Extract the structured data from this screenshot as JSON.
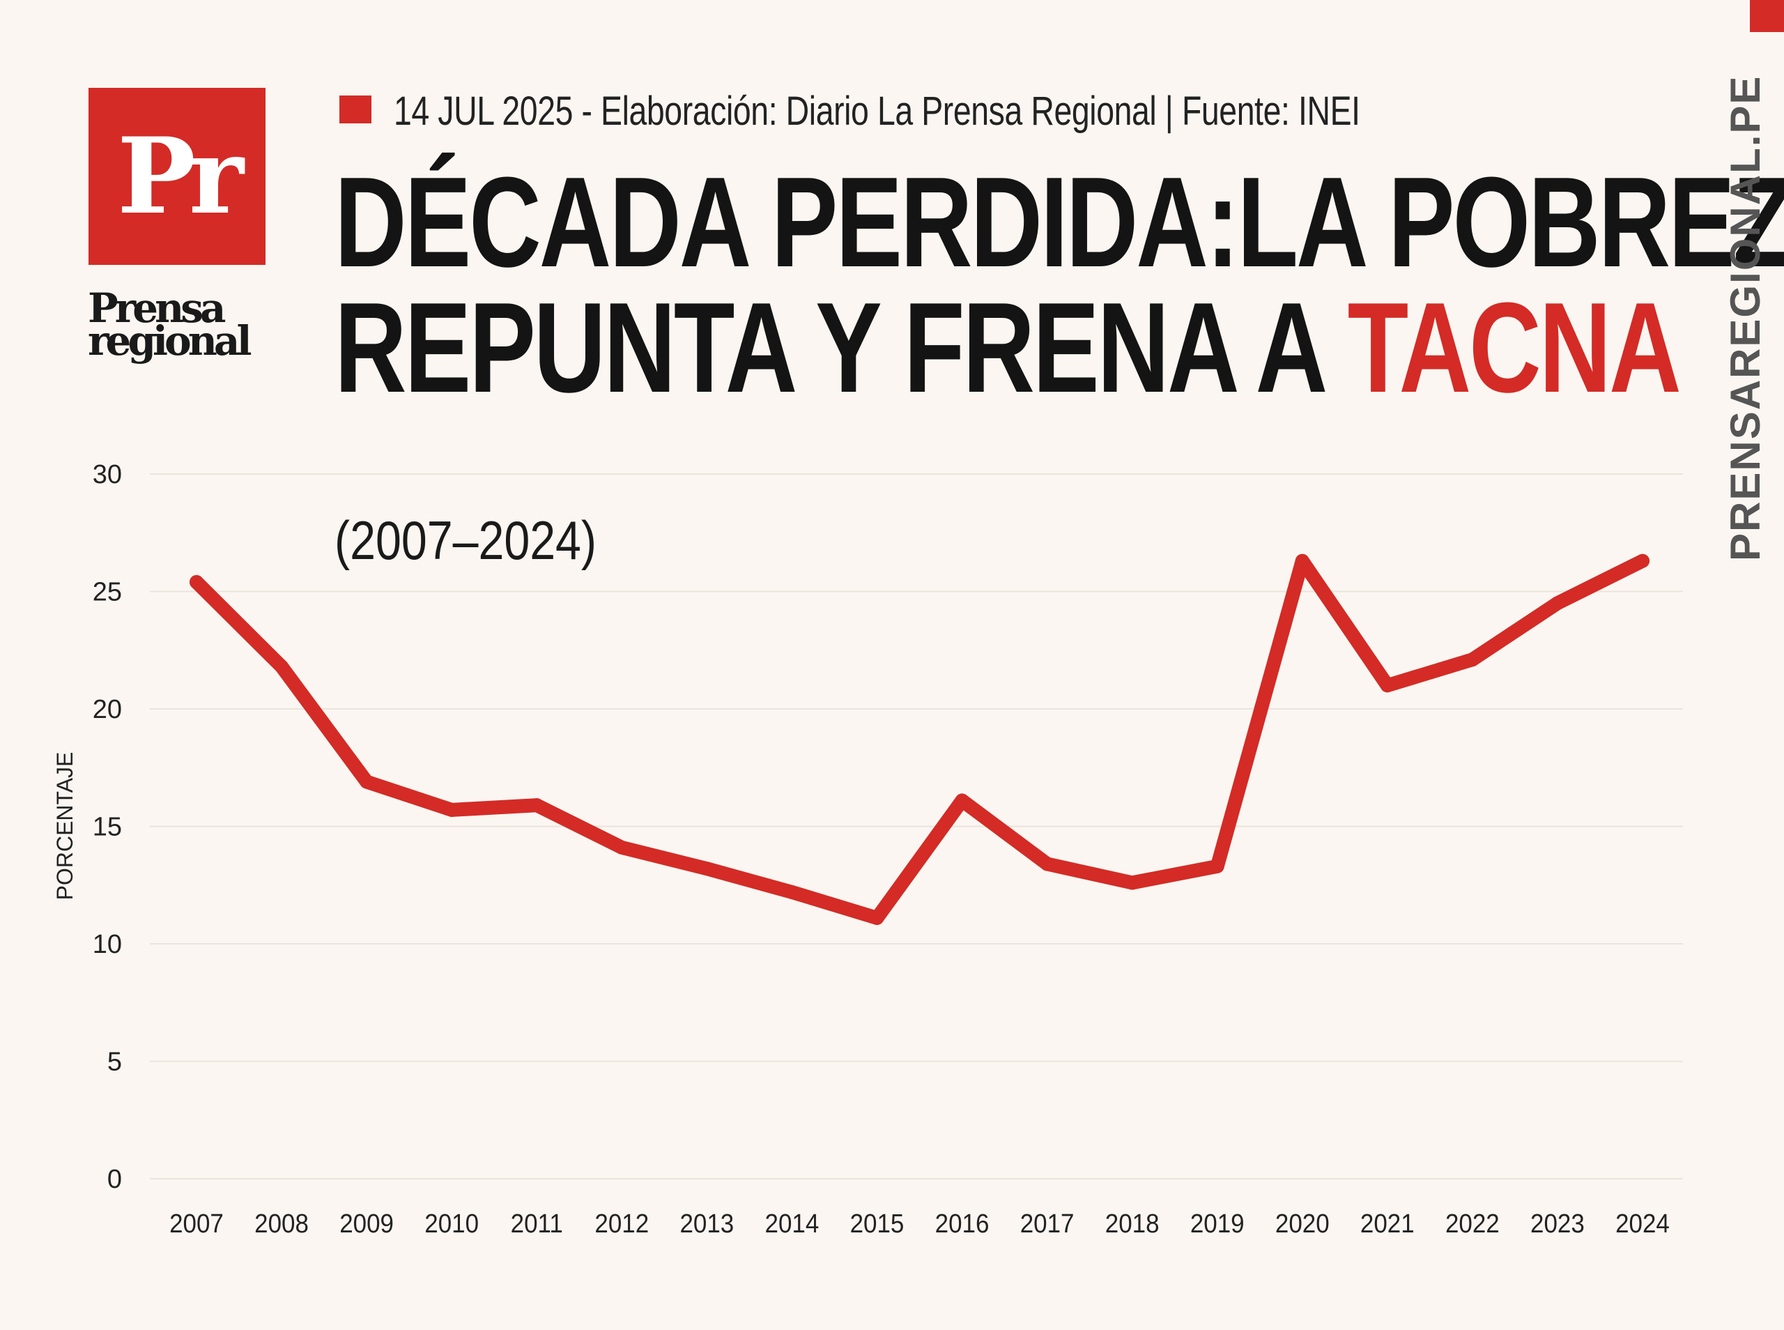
{
  "brand": {
    "logo_letters": "Pr",
    "logo_word_1": "Prensa",
    "logo_word_2": "regional",
    "side_url": "PRENSAREGIONAL.PE",
    "accent_color": "#d42b26"
  },
  "header": {
    "meta": "14 JUL 2025 -  Elaboración: Diario La Prensa Regional | Fuente: INEI",
    "title_line1": "DÉCADA PERDIDA:LA POBREZA",
    "title_line2_prefix": "REPUNTA Y FRENA A ",
    "title_line2_accent": "TACNA",
    "subtitle": "(2007–2024)"
  },
  "chart_data": {
    "type": "line",
    "title": "DÉCADA PERDIDA:LA POBREZA REPUNTA Y FRENA A TACNA",
    "subtitle": "(2007–2024)",
    "xlabel": "",
    "ylabel": "PORCENTAJE",
    "ylim": [
      0,
      30
    ],
    "yticks": [
      0,
      5,
      10,
      15,
      20,
      25,
      30
    ],
    "grid": true,
    "line_color": "#d42b26",
    "categories": [
      "2007",
      "2008",
      "2009",
      "2010",
      "2011",
      "2012",
      "2013",
      "2014",
      "2015",
      "2016",
      "2017",
      "2018",
      "2019",
      "2020",
      "2021",
      "2022",
      "2023",
      "2024"
    ],
    "series": [
      {
        "values": [
          25.4,
          21.8,
          16.9,
          15.7,
          15.9,
          14.1,
          13.2,
          12.2,
          11.1,
          16.1,
          13.4,
          12.6,
          13.3,
          26.3,
          21.0,
          22.1,
          24.5,
          26.3
        ]
      }
    ]
  }
}
